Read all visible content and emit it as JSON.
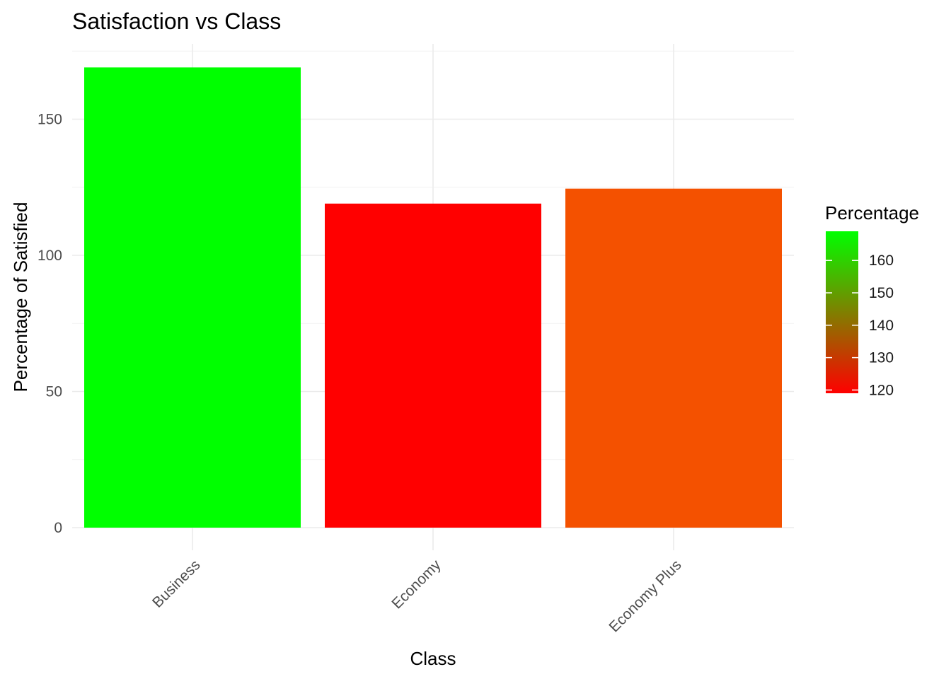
{
  "chart_data": {
    "type": "bar",
    "title": "Satisfaction vs Class",
    "xlabel": "Class",
    "ylabel": "Percentage of Satisfied",
    "categories": [
      "Business",
      "Economy",
      "Economy Plus"
    ],
    "values": [
      169,
      119,
      124.5
    ],
    "ylim": [
      0,
      175
    ],
    "y_ticks": [
      0,
      50,
      100,
      150
    ],
    "y_tick_labels": [
      "0",
      "50",
      "100",
      "150"
    ],
    "grid": true,
    "x_tick_rotation_deg": 45,
    "legend": {
      "title": "Percentage",
      "type": "colorbar",
      "position": "right",
      "range": [
        119,
        169
      ],
      "low_color": "#ff0000",
      "high_color": "#00ff00",
      "ticks": [
        120,
        130,
        140,
        150,
        160
      ],
      "tick_labels": [
        "120",
        "130",
        "140",
        "150",
        "160"
      ]
    },
    "bar_colors": [
      "#00ff00",
      "#ff0000",
      "#f45100"
    ]
  }
}
